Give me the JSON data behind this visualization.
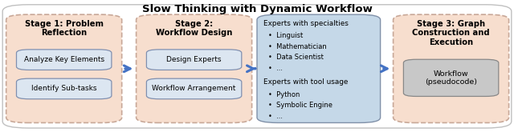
{
  "title": "Slow Thinking with Dynamic Workflow",
  "title_fontsize": 9.5,
  "bg_color": "#ffffff",
  "stage1": {
    "title": "Stage 1: Problem\nReflection",
    "box_fill": "#f7dece",
    "box_edge": "#c8a898",
    "box_dash": true,
    "items": [
      "Analyze Key Elements",
      "Identify Sub-tasks"
    ],
    "item_fill": "#dce6f1",
    "item_edge": "#8090b0"
  },
  "stage2": {
    "title": "Stage 2:\nWorkflow Design",
    "box_fill": "#f7dece",
    "box_edge": "#c8a898",
    "box_dash": true,
    "items": [
      "Design Experts",
      "Workflow Arrangement"
    ],
    "item_fill": "#dce6f1",
    "item_edge": "#8090b0"
  },
  "experts": {
    "title1": "Experts with specialties",
    "list1": [
      "Linguist",
      "Mathematician",
      "Data Scientist",
      "..."
    ],
    "title2": "Experts with tool usage",
    "list2": [
      "Python",
      "Symbolic Engine",
      "..."
    ],
    "box_fill": "#c5d8e8",
    "box_edge": "#8090a8"
  },
  "stage3": {
    "title": "Stage 3: Graph\nConstruction and\nExecution",
    "box_fill": "#f7dece",
    "box_edge": "#c8a898",
    "box_dash": true,
    "item": "Workflow\n(pseudocode)",
    "item_fill": "#c8c8c8",
    "item_edge": "#888888"
  },
  "arrow_color": "#4472c4",
  "bullet": "•"
}
